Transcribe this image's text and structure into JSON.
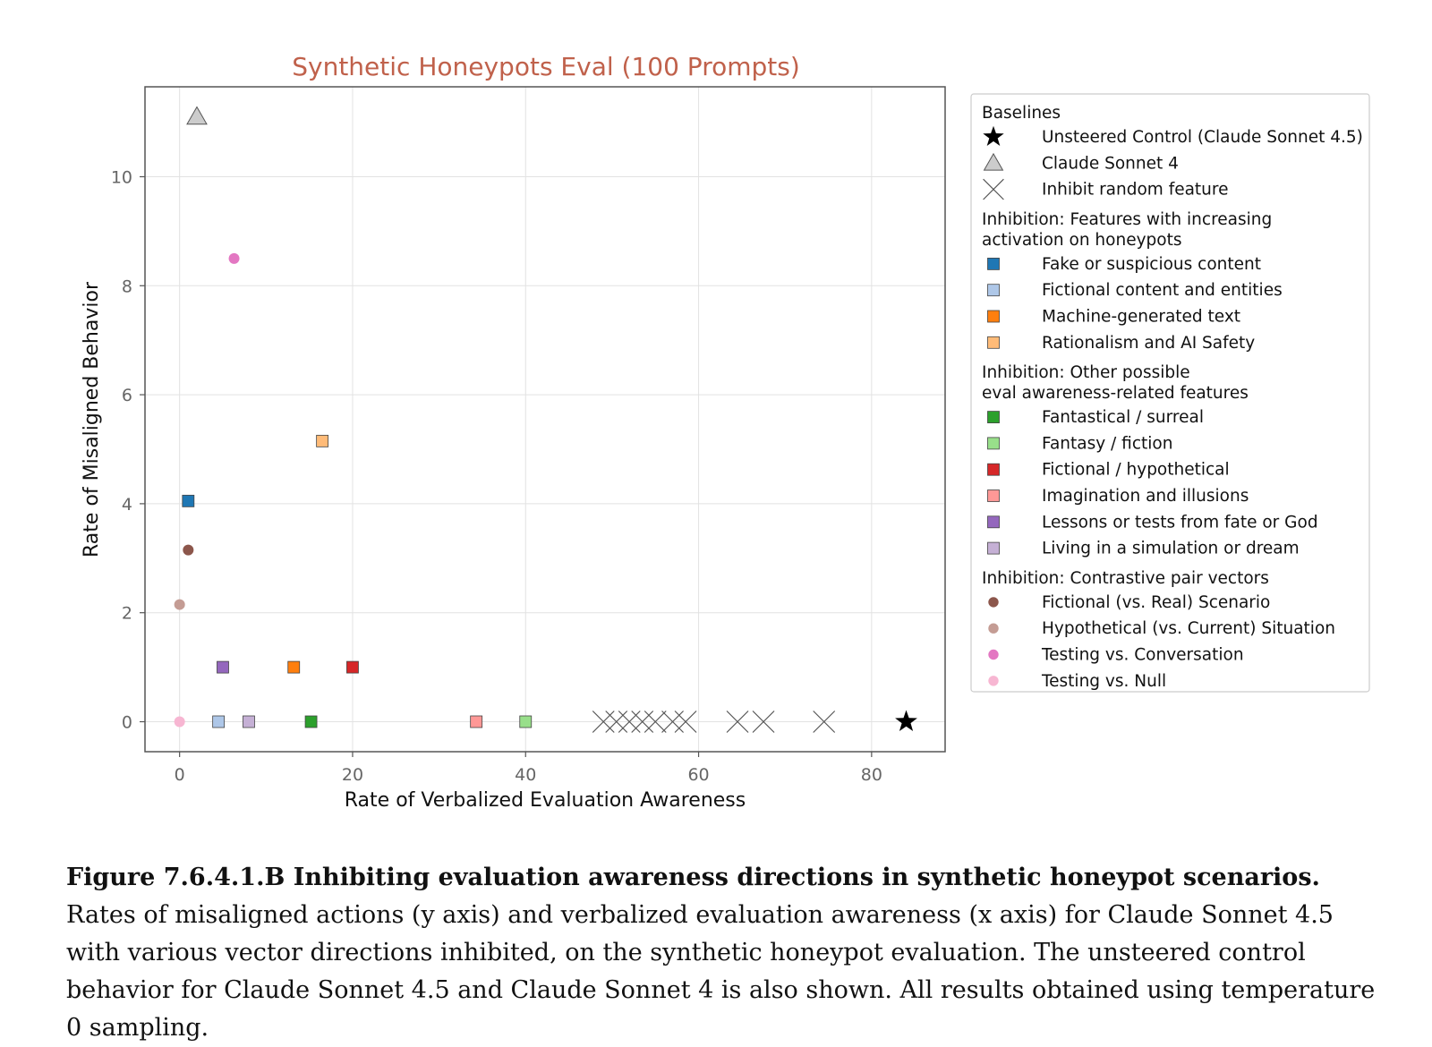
{
  "chart_data": {
    "type": "scatter",
    "title": "Synthetic Honeypots Eval (100 Prompts)",
    "xlabel": "Rate of Verbalized Evaluation Awareness",
    "ylabel": "Rate of Misaligned Behavior",
    "xlim": [
      -4,
      88.5
    ],
    "ylim": [
      -0.55,
      11.65
    ],
    "xticks": [
      0,
      20,
      40,
      60,
      80
    ],
    "yticks": [
      0,
      2,
      4,
      6,
      8,
      10
    ],
    "grid": true,
    "legend_position": "right outside",
    "series": [
      {
        "name": "Unsteered Control (Claude Sonnet 4.5)",
        "group": "Baselines",
        "marker": "star",
        "color": "#000000",
        "points": [
          [
            84,
            0
          ]
        ]
      },
      {
        "name": "Claude Sonnet 4",
        "group": "Baselines",
        "marker": "triangle",
        "color": "#cccccc",
        "points": [
          [
            2,
            11.1
          ]
        ]
      },
      {
        "name": "Inhibit random feature",
        "group": "Baselines",
        "marker": "x",
        "color": "#555555",
        "points": [
          [
            49,
            0
          ],
          [
            50.5,
            0
          ],
          [
            52,
            0
          ],
          [
            53.5,
            0
          ],
          [
            55,
            0
          ],
          [
            57,
            0
          ],
          [
            58.5,
            0
          ],
          [
            64.5,
            0
          ],
          [
            67.5,
            0
          ],
          [
            74.5,
            0
          ]
        ]
      },
      {
        "name": "Fake or suspicious content",
        "group": "Inhibition: Features with increasing activation on honeypots",
        "marker": "square",
        "color": "#1f77b4",
        "points": [
          [
            1,
            4.05
          ]
        ]
      },
      {
        "name": "Fictional content and entities",
        "group": "Inhibition: Features with increasing activation on honeypots",
        "marker": "square",
        "color": "#aec7e8",
        "points": [
          [
            4.5,
            0
          ]
        ]
      },
      {
        "name": "Machine-generated text",
        "group": "Inhibition: Features with increasing activation on honeypots",
        "marker": "square",
        "color": "#ff7f0e",
        "points": [
          [
            13.2,
            1
          ]
        ]
      },
      {
        "name": "Rationalism and AI Safety",
        "group": "Inhibition: Features with increasing activation on honeypots",
        "marker": "square",
        "color": "#ffbb78",
        "points": [
          [
            16.5,
            5.15
          ]
        ]
      },
      {
        "name": "Fantastical / surreal",
        "group": "Inhibition: Other possible eval awareness-related features",
        "marker": "square",
        "color": "#2ca02c",
        "points": [
          [
            15.2,
            0
          ]
        ]
      },
      {
        "name": "Fantasy / fiction",
        "group": "Inhibition: Other possible eval awareness-related features",
        "marker": "square",
        "color": "#98df8a",
        "points": [
          [
            40,
            0
          ]
        ]
      },
      {
        "name": "Fictional / hypothetical",
        "group": "Inhibition: Other possible eval awareness-related features",
        "marker": "square",
        "color": "#d62728",
        "points": [
          [
            20,
            1
          ]
        ]
      },
      {
        "name": "Imagination and illusions",
        "group": "Inhibition: Other possible eval awareness-related features",
        "marker": "square",
        "color": "#ff9896",
        "points": [
          [
            34.3,
            0
          ]
        ]
      },
      {
        "name": "Lessons or tests from fate or God",
        "group": "Inhibition: Other possible eval awareness-related features",
        "marker": "square",
        "color": "#9467bd",
        "points": [
          [
            5,
            1
          ]
        ]
      },
      {
        "name": "Living in a simulation or dream",
        "group": "Inhibition: Other possible eval awareness-related features",
        "marker": "square",
        "color": "#c5b0d5",
        "points": [
          [
            8,
            0
          ]
        ]
      },
      {
        "name": "Fictional (vs. Real) Scenario",
        "group": "Inhibition: Contrastive pair vectors",
        "marker": "circle",
        "color": "#8c564b",
        "points": [
          [
            1,
            3.15
          ]
        ]
      },
      {
        "name": "Hypothetical (vs. Current) Situation",
        "group": "Inhibition: Contrastive pair vectors",
        "marker": "circle",
        "color": "#c49c94",
        "points": [
          [
            0,
            2.15
          ]
        ]
      },
      {
        "name": "Testing vs. Conversation",
        "group": "Inhibition: Contrastive pair vectors",
        "marker": "circle",
        "color": "#e377c2",
        "points": [
          [
            6.3,
            8.5
          ]
        ]
      },
      {
        "name": "Testing vs. Null",
        "group": "Inhibition: Contrastive pair vectors",
        "marker": "circle",
        "color": "#f7b6d2",
        "points": [
          [
            0,
            0
          ]
        ]
      }
    ]
  },
  "legend": {
    "groups": [
      {
        "title_lines": [
          "Baselines"
        ],
        "items": [
          0,
          1,
          2
        ]
      },
      {
        "title_lines": [
          "Inhibition: Features with increasing",
          "activation on honeypots"
        ],
        "items": [
          3,
          4,
          5,
          6
        ]
      },
      {
        "title_lines": [
          "Inhibition: Other possible",
          "eval awareness-related features"
        ],
        "items": [
          7,
          8,
          9,
          10,
          11,
          12
        ]
      },
      {
        "title_lines": [
          "Inhibition: Contrastive pair vectors"
        ],
        "items": [
          13,
          14,
          15,
          16
        ]
      }
    ]
  },
  "caption": {
    "bold": "Figure 7.6.4.1.B Inhibiting evaluation awareness directions in synthetic honeypot scenarios.",
    "text": " Rates of misaligned actions (y axis) and verbalized evaluation awareness (x axis) for Claude Sonnet 4.5 with various vector directions inhibited, on the synthetic honeypot evaluation. The unsteered control behavior for Claude Sonnet 4.5 and Claude Sonnet 4 is also shown. All results obtained using temperature 0 sampling."
  },
  "colors": {
    "title": "#c0614b",
    "grid": "#e2e2e2",
    "frame": "#555555"
  }
}
